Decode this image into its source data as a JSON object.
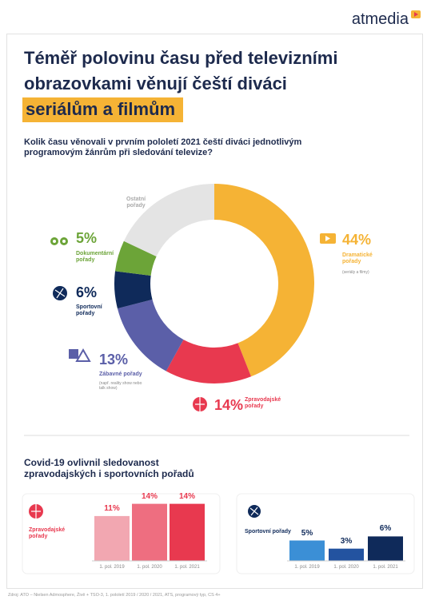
{
  "brand": "atmedia",
  "title_lines": [
    "Téměř polovinu času před televizními",
    "obrazovkami věnují čeští diváci"
  ],
  "title_highlight": "seriálům a filmům",
  "section_title": "Covid-19 ovlivnil sledovanost zpravodajských i sportovních pořadů",
  "source": "Zdroj: ATO – Nielsen Admosphere, Živě + TSO-3, 1. pololetí 2019 / 2020 / 2021, ATS, programový typ, CS 4+",
  "chart_data": [
    {
      "type": "donut",
      "title": "Kolik času věnovali v prvním pololetí 2021 čeští diváci jednotlivým programovým žánrům při sledování televize?",
      "categories": [
        "Dramatické pořady",
        "Zpravodajské pořady",
        "Zábavné pořady",
        "Sportovní pořady",
        "Dokumentární pořady",
        "Ostatní pořady"
      ],
      "values": [
        44,
        14,
        13,
        6,
        5,
        18
      ],
      "value_labels": [
        "44%",
        "14%",
        "13%",
        "6%",
        "5%",
        null
      ],
      "notes": [
        "(seriály a filmy)",
        null,
        "(např. reality show nebo talk show)",
        null,
        null,
        null
      ],
      "colors": [
        "#f5b335",
        "#e8394f",
        "#5b5fa8",
        "#0f2a5a",
        "#6ca438",
        "#e4e4e4"
      ]
    },
    {
      "type": "bar",
      "title": "Zpravodajské pořady",
      "categories": [
        "1. pol. 2019",
        "1. pol. 2020",
        "1. pol. 2021"
      ],
      "values": [
        11,
        14,
        14
      ],
      "value_labels": [
        "11%",
        "14%",
        "14%"
      ],
      "colors": [
        "#f2a7b1",
        "#ee6e80",
        "#e8394f"
      ],
      "color": "#e8394f"
    },
    {
      "type": "bar",
      "title": "Sportovní pořady",
      "categories": [
        "1. pol. 2019",
        "1. pol. 2020",
        "1. pol. 2021"
      ],
      "values": [
        5,
        3,
        6
      ],
      "value_labels": [
        "5%",
        "3%",
        "6%"
      ],
      "colors": [
        "#3b8fd6",
        "#2353a0",
        "#0f2a5a"
      ],
      "color": "#0f2a5a"
    }
  ]
}
